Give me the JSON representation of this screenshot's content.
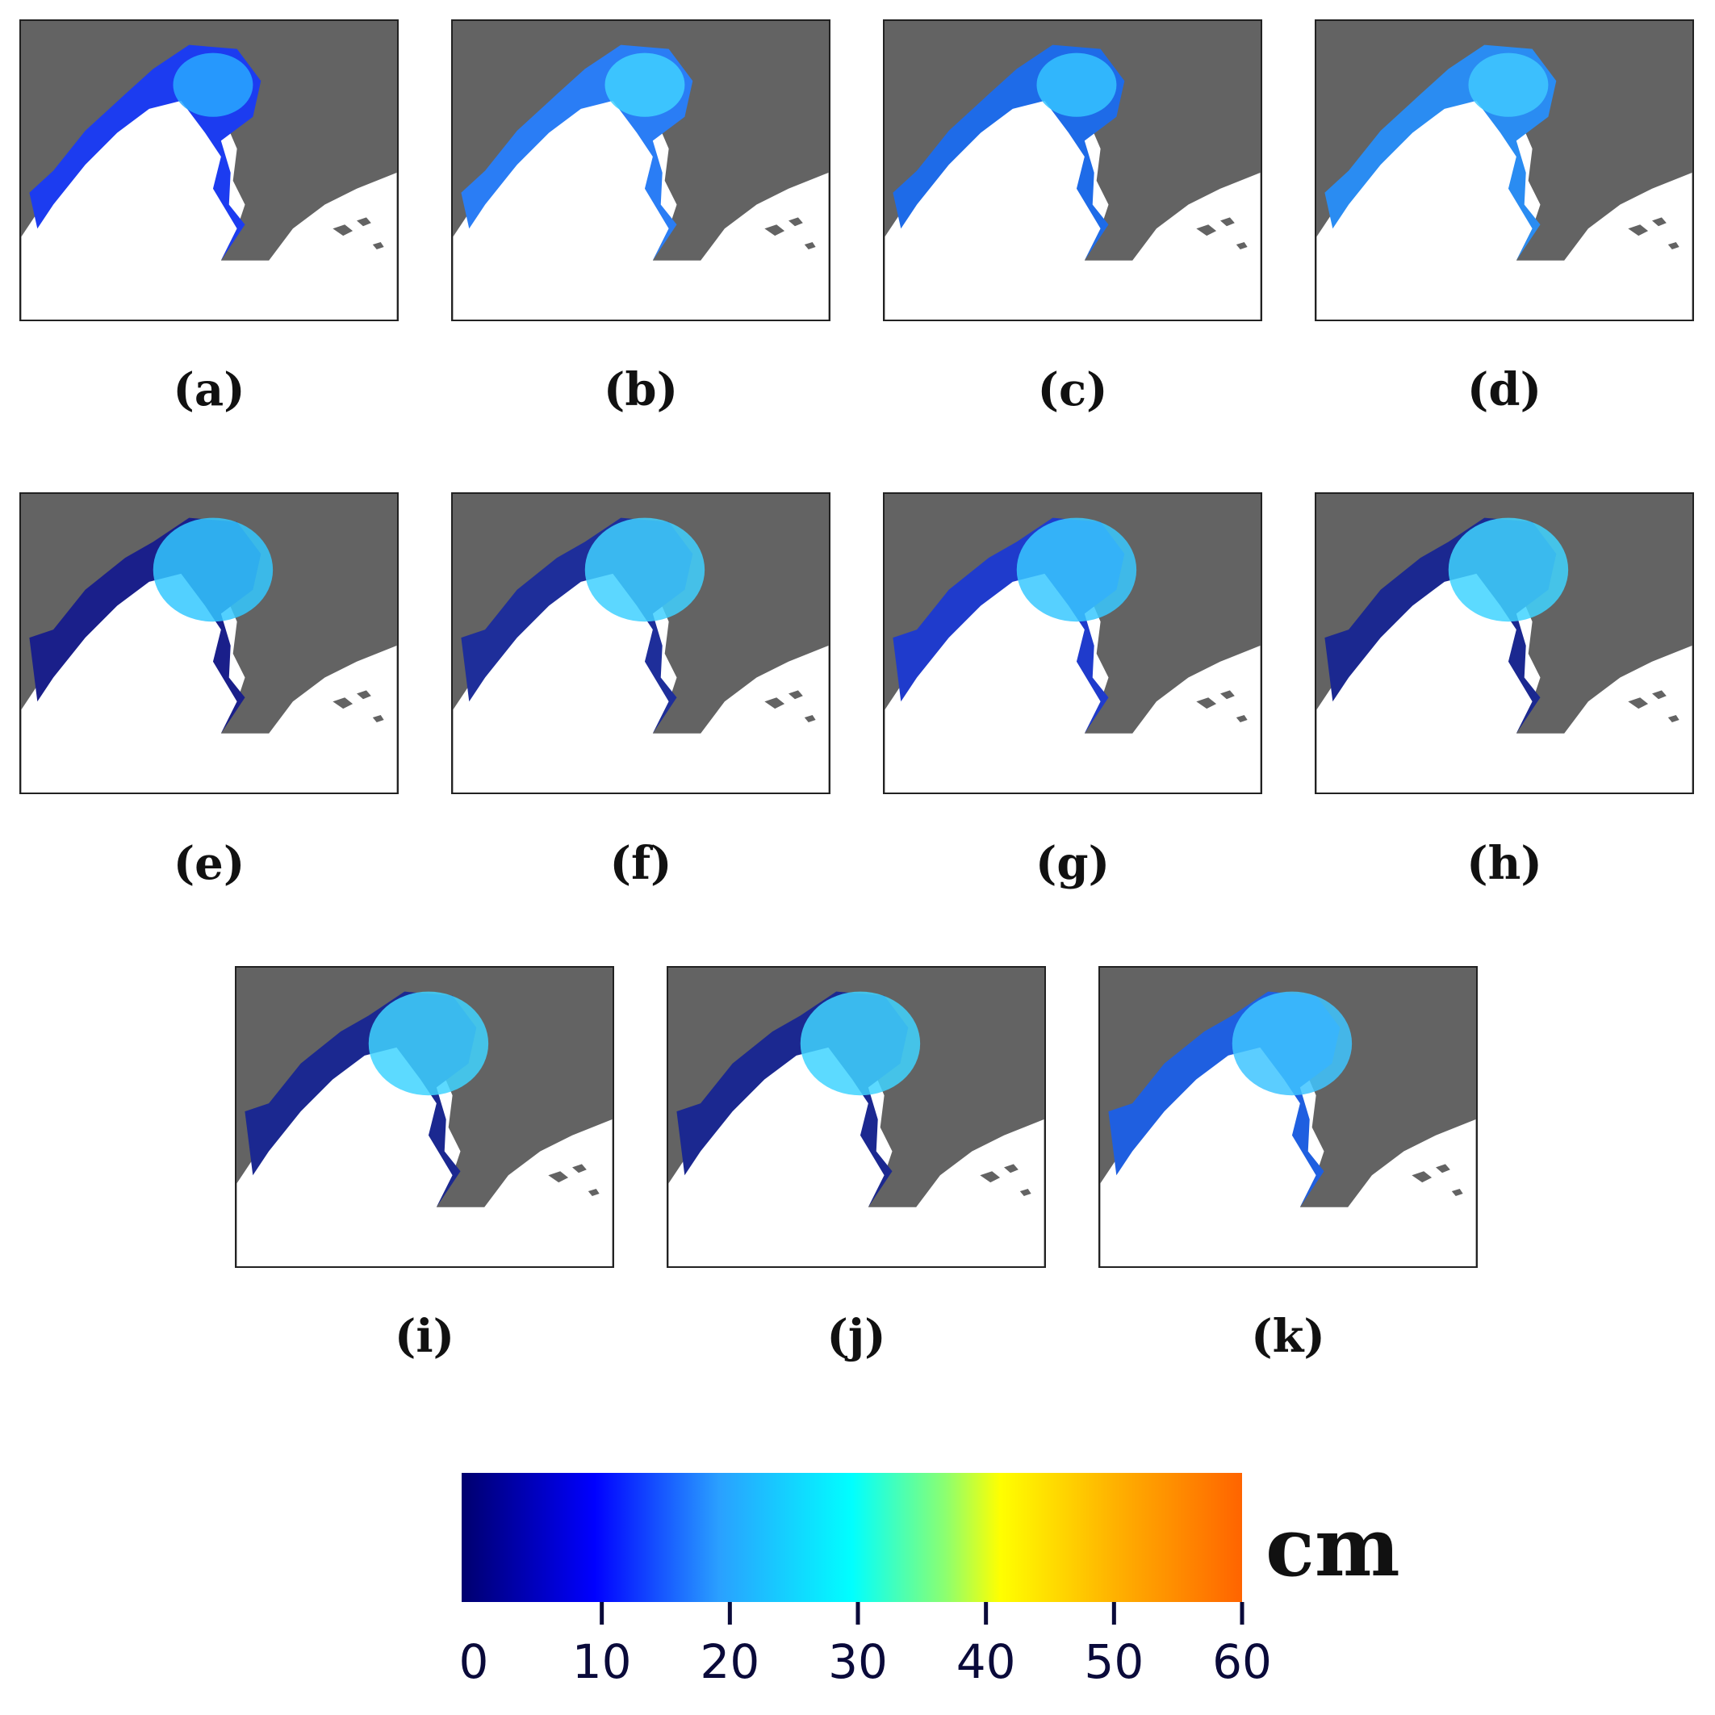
{
  "panels": [
    {
      "label": "(a)",
      "sea_color": "#1c3cf0",
      "core_color": "#28a8ff"
    },
    {
      "label": "(b)",
      "sea_color": "#2a7df5",
      "core_color": "#3fd0ff"
    },
    {
      "label": "(c)",
      "sea_color": "#1e6be8",
      "core_color": "#35c3ff"
    },
    {
      "label": "(d)",
      "sea_color": "#2a8cf2",
      "core_color": "#3fc8ff"
    },
    {
      "label": "(e)",
      "sea_color": "#1a1f8a",
      "core_color": "#34c8ff"
    },
    {
      "label": "(f)",
      "sea_color": "#1e2e9a",
      "core_color": "#3fd0ff"
    },
    {
      "label": "(g)",
      "sea_color": "#1f3bcc",
      "core_color": "#38c8ff"
    },
    {
      "label": "(h)",
      "sea_color": "#1b2890",
      "core_color": "#40d4ff"
    },
    {
      "label": "(i)",
      "sea_color": "#1b2890",
      "core_color": "#40d4ff"
    },
    {
      "label": "(j)",
      "sea_color": "#1b2890",
      "core_color": "#40d4ff"
    },
    {
      "label": "(k)",
      "sea_color": "#1f5fe0",
      "core_color": "#3ec4ff"
    }
  ],
  "colorbar": {
    "ticks": [
      "0",
      "10",
      "20",
      "30",
      "40",
      "50",
      "60"
    ],
    "unit": "cm",
    "min": 0,
    "max": 60,
    "colors": [
      "#00006e",
      "#0000ff",
      "#2aa0ff",
      "#00ffff",
      "#ffff00",
      "#ff6400"
    ]
  },
  "colors": {
    "land": "#636363",
    "white_region": "#ffffff"
  }
}
